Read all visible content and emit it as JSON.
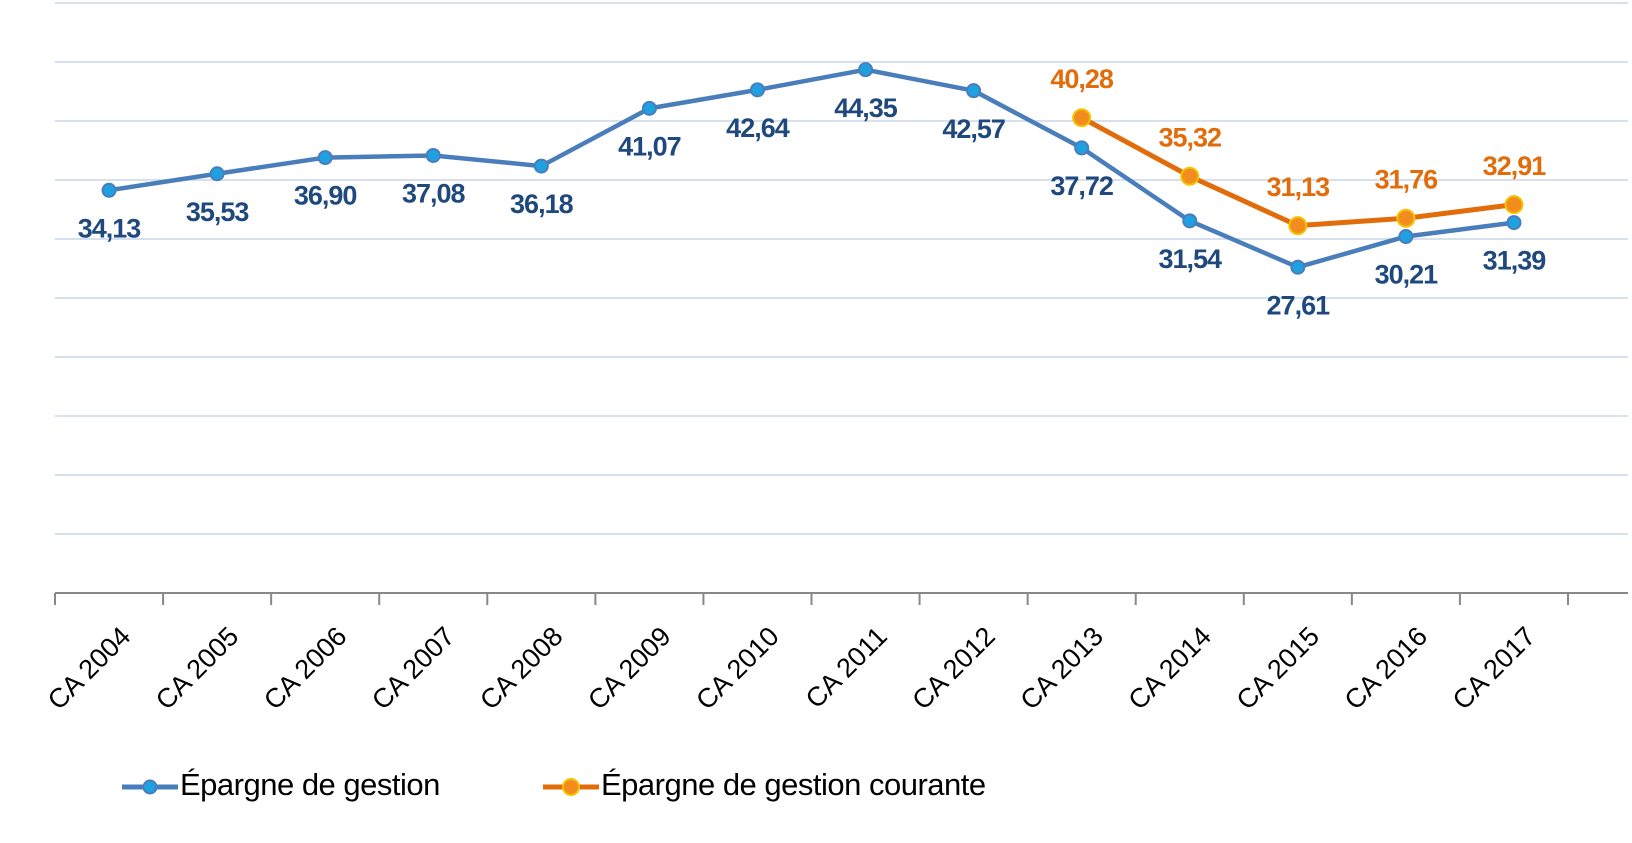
{
  "chart_data": {
    "type": "line",
    "categories": [
      "CA 2004",
      "CA 2005",
      "CA 2006",
      "CA 2007",
      "CA 2008",
      "CA 2009",
      "CA 2010",
      "CA 2011",
      "CA 2012",
      "CA 2013",
      "CA 2014",
      "CA 2015",
      "CA 2016",
      "CA 2017"
    ],
    "series": [
      {
        "name": "Épargne de gestion",
        "color": "#4a7ebb",
        "marker_color": "#1fa0e0",
        "label_color": "#1f497d",
        "values": [
          34.13,
          35.53,
          36.9,
          37.08,
          36.18,
          41.07,
          42.64,
          44.35,
          42.57,
          37.72,
          31.54,
          27.61,
          30.21,
          31.39
        ],
        "value_labels": [
          "34,13",
          "35,53",
          "36,90",
          "37,08",
          "36,18",
          "41,07",
          "42,64",
          "44,35",
          "42,57",
          "37,72",
          "31,54",
          "27,61",
          "30,21",
          "31,39"
        ]
      },
      {
        "name": "Épargne de gestion courante",
        "color": "#e36c0a",
        "marker_color": "#f28c1e",
        "label_color": "#e36c0a",
        "values": [
          null,
          null,
          null,
          null,
          null,
          null,
          null,
          null,
          null,
          40.28,
          35.32,
          31.13,
          31.76,
          32.91
        ],
        "value_labels": [
          null,
          null,
          null,
          null,
          null,
          null,
          null,
          null,
          null,
          "40,28",
          "35,32",
          "31,13",
          "31,76",
          "32,91"
        ]
      }
    ],
    "ylim": [
      0,
      50
    ],
    "yticks": [
      0,
      5,
      10,
      15,
      20,
      25,
      30,
      35,
      40,
      45,
      50
    ],
    "grid": true,
    "legend": "bottom"
  }
}
